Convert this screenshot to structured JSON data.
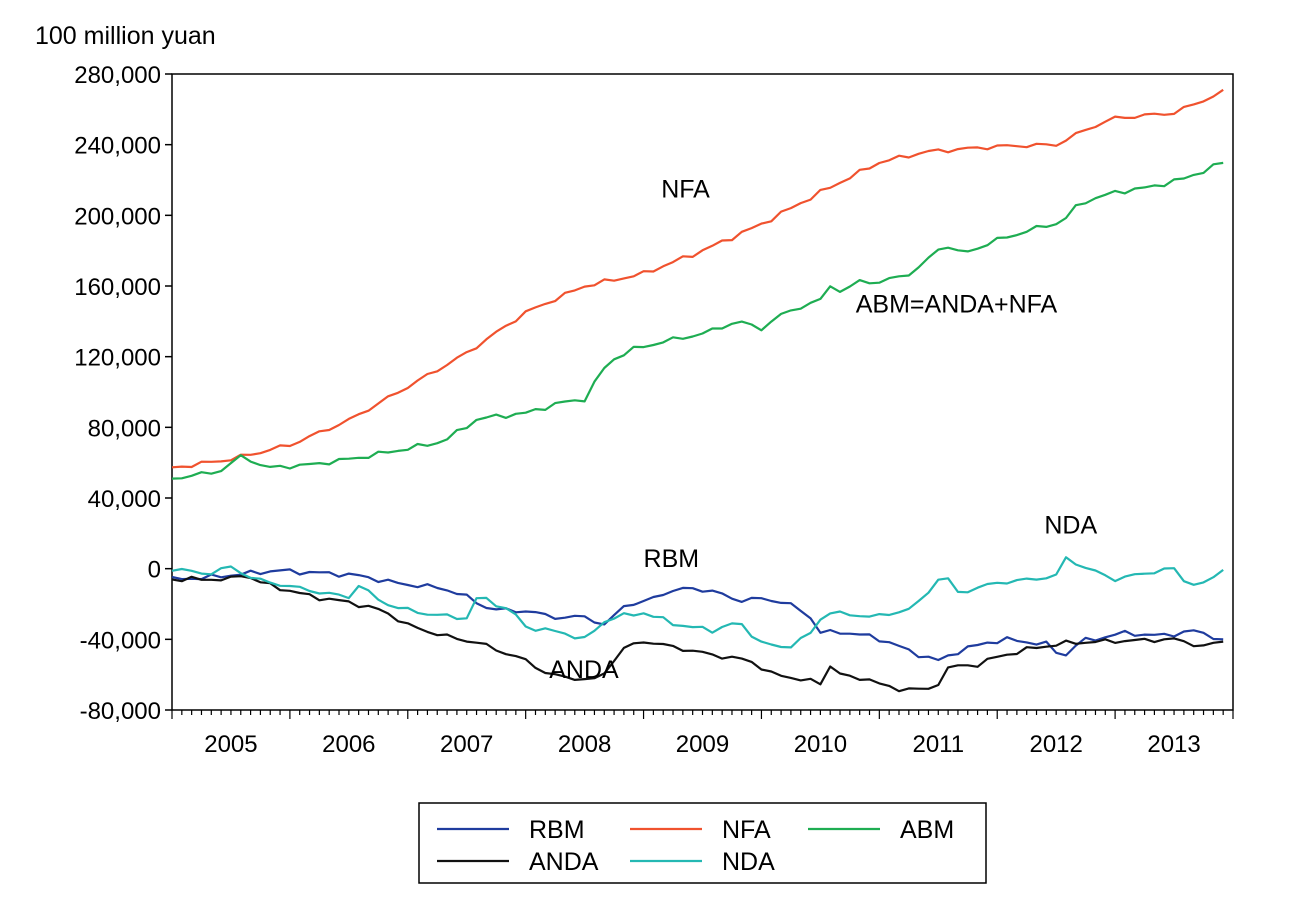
{
  "chart_data": {
    "type": "line",
    "ylabel": "100 million yuan",
    "ylim": [
      -80000,
      280000
    ],
    "yticks": [
      280000,
      240000,
      200000,
      160000,
      120000,
      80000,
      40000,
      0,
      -40000,
      -80000
    ],
    "ytick_labels": [
      "280,000",
      "240,000",
      "200,000",
      "160,000",
      "120,000",
      "80,000",
      "40,000",
      "0",
      "-40,000",
      "-80,000"
    ],
    "x_start": "2005-01",
    "x_end": "2013-12",
    "xtick_labels": [
      "2005",
      "2006",
      "2007",
      "2008",
      "2009",
      "2010",
      "2011",
      "2012",
      "2013"
    ],
    "grid": false,
    "annotations": [
      {
        "text": "NFA",
        "x": 2009.15,
        "y": 210000
      },
      {
        "text": "ABM=ANDA+NFA",
        "x": 2010.8,
        "y": 145000
      },
      {
        "text": "NDA",
        "x": 2012.4,
        "y": 20000
      },
      {
        "text": "RBM",
        "x": 2009.0,
        "y": 1000
      },
      {
        "text": "ANDA",
        "x": 2008.2,
        "y": -62000
      }
    ],
    "legend": {
      "position": "bottom",
      "entries": [
        "RBM",
        "NFA",
        "ABM",
        "ANDA",
        "NDA"
      ]
    },
    "series": [
      {
        "name": "RBM",
        "color": "#1f3c9e",
        "keypoints": [
          [
            2005.0,
            -6000
          ],
          [
            2005.3,
            -5000
          ],
          [
            2005.6,
            -3000
          ],
          [
            2005.9,
            -1000
          ],
          [
            2006.1,
            -2000
          ],
          [
            2006.3,
            -2500
          ],
          [
            2006.6,
            -4000
          ],
          [
            2006.8,
            -7000
          ],
          [
            2007.0,
            -9000
          ],
          [
            2007.3,
            -11000
          ],
          [
            2007.5,
            -16000
          ],
          [
            2007.7,
            -23000
          ],
          [
            2008.0,
            -24000
          ],
          [
            2008.3,
            -28000
          ],
          [
            2008.5,
            -27000
          ],
          [
            2008.7,
            -33000
          ],
          [
            2008.8,
            -21000
          ],
          [
            2009.0,
            -19000
          ],
          [
            2009.2,
            -13000
          ],
          [
            2009.4,
            -11000
          ],
          [
            2009.6,
            -13000
          ],
          [
            2009.8,
            -18000
          ],
          [
            2010.0,
            -17000
          ],
          [
            2010.2,
            -19000
          ],
          [
            2010.4,
            -26000
          ],
          [
            2010.5,
            -36000
          ],
          [
            2010.7,
            -36000
          ],
          [
            2010.9,
            -38000
          ],
          [
            2011.1,
            -42000
          ],
          [
            2011.3,
            -48000
          ],
          [
            2011.5,
            -52000
          ],
          [
            2011.7,
            -46000
          ],
          [
            2011.9,
            -42000
          ],
          [
            2012.1,
            -40000
          ],
          [
            2012.3,
            -42000
          ],
          [
            2012.45,
            -43000
          ],
          [
            2012.55,
            -51000
          ],
          [
            2012.7,
            -41000
          ],
          [
            2012.9,
            -39000
          ],
          [
            2013.1,
            -36000
          ],
          [
            2013.3,
            -38000
          ],
          [
            2013.5,
            -37000
          ],
          [
            2013.7,
            -35000
          ],
          [
            2013.92,
            -41000
          ]
        ]
      },
      {
        "name": "NFA",
        "color": "#f0522e",
        "keypoints": [
          [
            2005.0,
            57000
          ],
          [
            2005.5,
            62000
          ],
          [
            2006.0,
            70000
          ],
          [
            2006.5,
            84000
          ],
          [
            2007.0,
            103000
          ],
          [
            2007.5,
            122000
          ],
          [
            2008.0,
            145000
          ],
          [
            2008.5,
            160000
          ],
          [
            2009.0,
            167000
          ],
          [
            2009.5,
            180000
          ],
          [
            2010.0,
            195000
          ],
          [
            2010.5,
            213000
          ],
          [
            2011.0,
            230000
          ],
          [
            2011.4,
            236000
          ],
          [
            2011.8,
            238000
          ],
          [
            2012.0,
            239000
          ],
          [
            2012.5,
            240000
          ],
          [
            2012.8,
            250000
          ],
          [
            2013.0,
            255000
          ],
          [
            2013.5,
            258000
          ],
          [
            2013.92,
            270000
          ]
        ]
      },
      {
        "name": "ABM",
        "color": "#1ead52",
        "keypoints": [
          [
            2005.0,
            51000
          ],
          [
            2005.4,
            55000
          ],
          [
            2005.6,
            64000
          ],
          [
            2005.8,
            57000
          ],
          [
            2006.2,
            59000
          ],
          [
            2006.6,
            63000
          ],
          [
            2007.0,
            68000
          ],
          [
            2007.3,
            72000
          ],
          [
            2007.6,
            85000
          ],
          [
            2008.0,
            88000
          ],
          [
            2008.3,
            94000
          ],
          [
            2008.5,
            96000
          ],
          [
            2008.7,
            117000
          ],
          [
            2008.9,
            124000
          ],
          [
            2009.2,
            129000
          ],
          [
            2009.5,
            133000
          ],
          [
            2009.8,
            140000
          ],
          [
            2010.0,
            136000
          ],
          [
            2010.2,
            145000
          ],
          [
            2010.5,
            152000
          ],
          [
            2010.6,
            162000
          ],
          [
            2010.7,
            155000
          ],
          [
            2010.8,
            163000
          ],
          [
            2011.0,
            162000
          ],
          [
            2011.3,
            168000
          ],
          [
            2011.55,
            184000
          ],
          [
            2011.7,
            178000
          ],
          [
            2012.0,
            186000
          ],
          [
            2012.2,
            190000
          ],
          [
            2012.4,
            194000
          ],
          [
            2012.55,
            196000
          ],
          [
            2012.7,
            207000
          ],
          [
            2013.0,
            213000
          ],
          [
            2013.3,
            216000
          ],
          [
            2013.6,
            221000
          ],
          [
            2013.92,
            230000
          ]
        ]
      },
      {
        "name": "ANDA",
        "color": "#111111",
        "keypoints": [
          [
            2005.0,
            -6000
          ],
          [
            2005.5,
            -6000
          ],
          [
            2005.6,
            -3000
          ],
          [
            2005.8,
            -9000
          ],
          [
            2006.2,
            -16000
          ],
          [
            2006.5,
            -19000
          ],
          [
            2006.8,
            -24000
          ],
          [
            2007.0,
            -32000
          ],
          [
            2007.3,
            -38000
          ],
          [
            2007.6,
            -42000
          ],
          [
            2008.0,
            -52000
          ],
          [
            2008.2,
            -60000
          ],
          [
            2008.4,
            -62000
          ],
          [
            2008.6,
            -63000
          ],
          [
            2008.7,
            -57000
          ],
          [
            2008.8,
            -46000
          ],
          [
            2009.0,
            -41000
          ],
          [
            2009.3,
            -45000
          ],
          [
            2009.6,
            -49000
          ],
          [
            2009.9,
            -52000
          ],
          [
            2010.1,
            -60000
          ],
          [
            2010.3,
            -62000
          ],
          [
            2010.5,
            -65000
          ],
          [
            2010.6,
            -53000
          ],
          [
            2010.7,
            -62000
          ],
          [
            2010.9,
            -62000
          ],
          [
            2011.1,
            -68000
          ],
          [
            2011.3,
            -68000
          ],
          [
            2011.45,
            -69000
          ],
          [
            2011.6,
            -55000
          ],
          [
            2011.8,
            -55000
          ],
          [
            2012.0,
            -50000
          ],
          [
            2012.3,
            -45000
          ],
          [
            2012.6,
            -42000
          ],
          [
            2013.0,
            -41000
          ],
          [
            2013.5,
            -40000
          ],
          [
            2013.75,
            -44000
          ],
          [
            2013.92,
            -41000
          ]
        ]
      },
      {
        "name": "NDA",
        "color": "#24b8b3",
        "keypoints": [
          [
            2005.0,
            0
          ],
          [
            2005.3,
            -3000
          ],
          [
            2005.5,
            1000
          ],
          [
            2005.7,
            -6000
          ],
          [
            2006.0,
            -10000
          ],
          [
            2006.3,
            -14000
          ],
          [
            2006.5,
            -16000
          ],
          [
            2006.6,
            -8000
          ],
          [
            2006.7,
            -16000
          ],
          [
            2006.9,
            -22000
          ],
          [
            2007.2,
            -26000
          ],
          [
            2007.5,
            -28000
          ],
          [
            2007.6,
            -15000
          ],
          [
            2007.9,
            -25000
          ],
          [
            2008.0,
            -33000
          ],
          [
            2008.3,
            -36000
          ],
          [
            2008.5,
            -40000
          ],
          [
            2008.7,
            -28000
          ],
          [
            2009.0,
            -25000
          ],
          [
            2009.3,
            -32000
          ],
          [
            2009.6,
            -35000
          ],
          [
            2009.8,
            -30000
          ],
          [
            2010.0,
            -42000
          ],
          [
            2010.2,
            -45000
          ],
          [
            2010.4,
            -38000
          ],
          [
            2010.55,
            -24000
          ],
          [
            2010.7,
            -26000
          ],
          [
            2011.0,
            -27000
          ],
          [
            2011.3,
            -22000
          ],
          [
            2011.55,
            -2000
          ],
          [
            2011.65,
            -14000
          ],
          [
            2012.0,
            -8000
          ],
          [
            2012.3,
            -6000
          ],
          [
            2012.5,
            -4000
          ],
          [
            2012.55,
            7000
          ],
          [
            2012.8,
            -1000
          ],
          [
            2013.0,
            -6000
          ],
          [
            2013.3,
            -2000
          ],
          [
            2013.5,
            0
          ],
          [
            2013.6,
            -8000
          ],
          [
            2013.75,
            -9000
          ],
          [
            2013.92,
            0
          ]
        ]
      }
    ]
  }
}
